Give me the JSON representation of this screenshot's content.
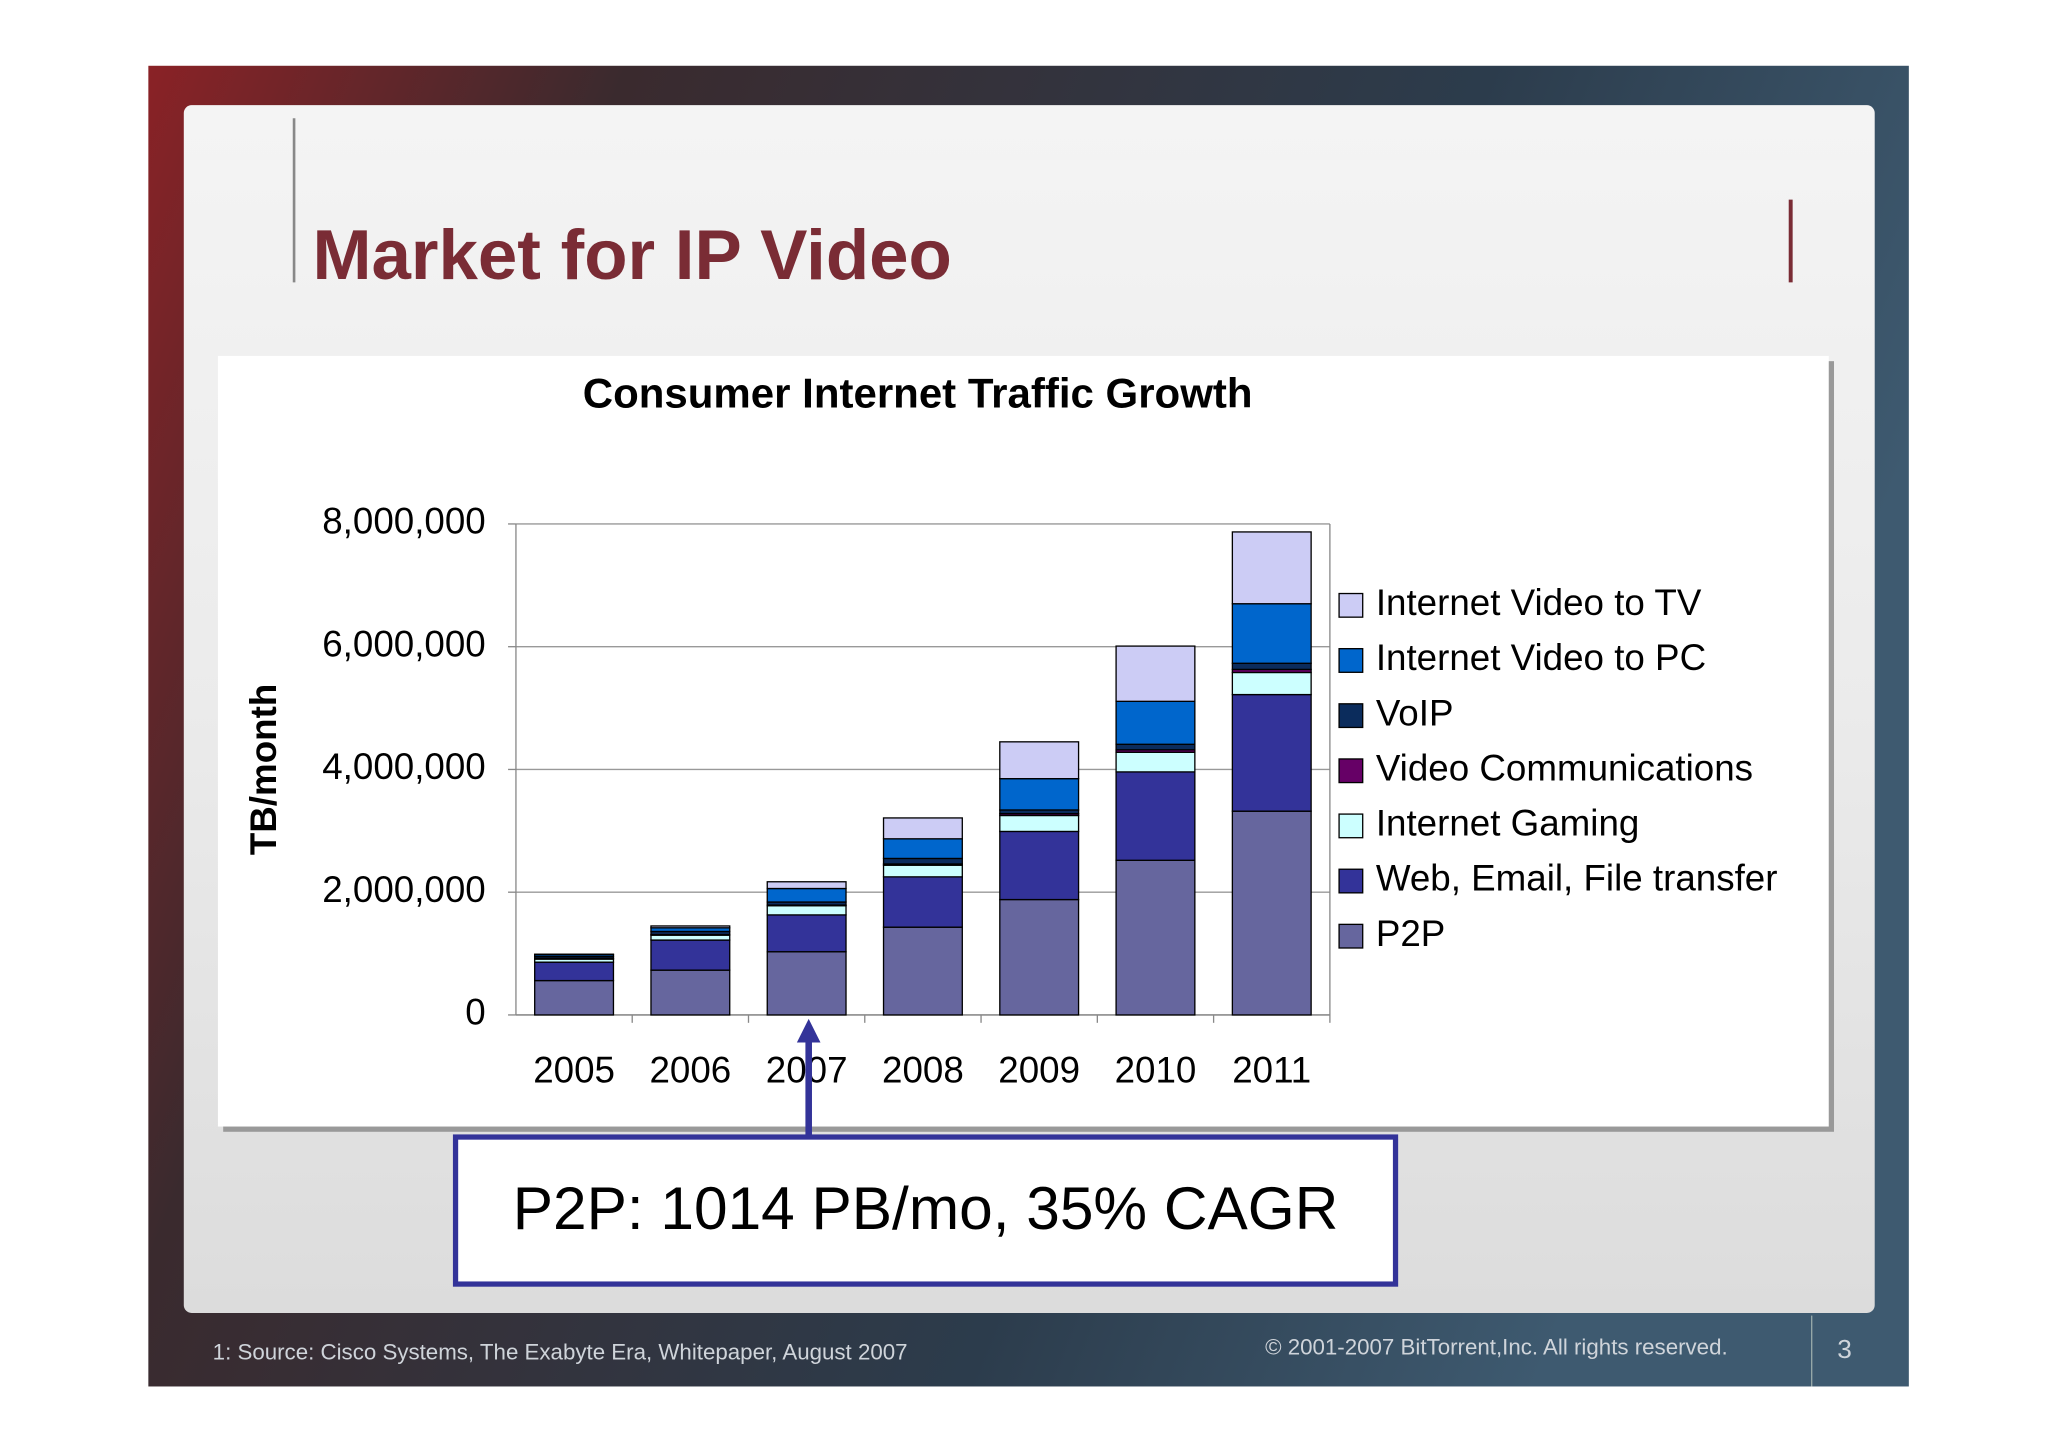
{
  "header": {
    "title": "Market for IP Video"
  },
  "chart_data": {
    "type": "bar",
    "stacked": true,
    "title": "Consumer Internet Traffic Growth",
    "y_label": "TB/month",
    "categories": [
      "2005",
      "2006",
      "2007",
      "2008",
      "2009",
      "2010",
      "2011"
    ],
    "series": [
      {
        "name": "P2P",
        "color": "#66669e",
        "values": [
          560000,
          730000,
          1030000,
          1430000,
          1880000,
          2520000,
          3320000
        ]
      },
      {
        "name": "Web, Email, File transfer",
        "color": "#333399",
        "values": [
          300000,
          490000,
          600000,
          820000,
          1110000,
          1440000,
          1900000
        ]
      },
      {
        "name": "Internet Gaming",
        "color": "#ccffff",
        "values": [
          50000,
          80000,
          150000,
          190000,
          260000,
          320000,
          360000
        ]
      },
      {
        "name": "Video Communications",
        "color": "#660066",
        "values": [
          10000,
          10000,
          10000,
          20000,
          30000,
          40000,
          50000
        ]
      },
      {
        "name": "VoIP",
        "color": "#0b2c5c",
        "values": [
          30000,
          50000,
          50000,
          90000,
          60000,
          90000,
          100000
        ]
      },
      {
        "name": "Internet Video to PC",
        "color": "#0066cc",
        "values": [
          30000,
          60000,
          220000,
          320000,
          510000,
          700000,
          970000
        ]
      },
      {
        "name": "Internet Video to TV",
        "color": "#ccccf5",
        "values": [
          10000,
          30000,
          110000,
          340000,
          600000,
          900000,
          1170000
        ]
      }
    ],
    "ylim": [
      0,
      8000000
    ],
    "yticks": [
      0,
      {
        "value": 2000000,
        "label": "2,000,000"
      },
      {
        "value": 4000000,
        "label": "4,000,000"
      },
      {
        "value": 6000000,
        "label": "6,000,000"
      },
      {
        "value": 8000000,
        "label": "8,000,000"
      }
    ],
    "grid": true,
    "legend": "right"
  },
  "callout": {
    "text": "P2P:  1014 PB/mo, 35% CAGR"
  },
  "footer": {
    "source": "1:  Source:  Cisco Systems, The Exabyte Era, Whitepaper, August 2007",
    "copyright": "© 2001-2007  BitTorrent,Inc. All rights reserved.",
    "page": "3"
  }
}
